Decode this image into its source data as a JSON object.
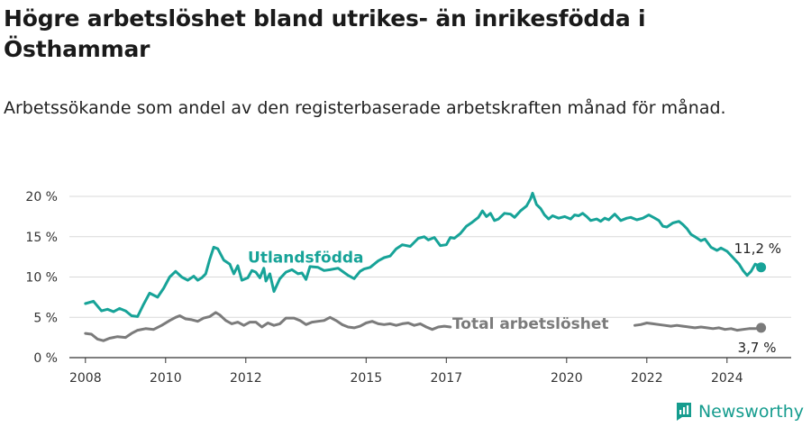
{
  "header": {
    "title": "Högre arbetslöshet bland utrikes- än inrikesfödda i Östhammar",
    "subtitle": "Arbetssökande som andel av den registerbaserade arbetskraften månad för månad."
  },
  "brand": {
    "name": "Newsworthy"
  },
  "colors": {
    "foreign_born": "#17a398",
    "total": "#7b7b7b",
    "grid": "#d9d9d9",
    "axis": "#333333",
    "brand": "#159c8e"
  },
  "chart_data": {
    "type": "line",
    "title": "Högre arbetslöshet bland utrikes- än inrikesfödda i Östhammar",
    "subtitle": "Arbetssökande som andel av den registerbaserade arbetskraften månad för månad.",
    "xlabel": "",
    "ylabel": "",
    "xlim": [
      2007.6,
      2025.6
    ],
    "ylim": [
      0,
      20
    ],
    "y_ticks": [
      0,
      5,
      10,
      15,
      20
    ],
    "y_tick_labels": [
      "0 %",
      "5 %",
      "10 %",
      "15 %",
      "20 %"
    ],
    "x_ticks": [
      2008,
      2010,
      2012,
      2015,
      2017,
      2020,
      2022,
      2024
    ],
    "x_tick_labels": [
      "2008",
      "2010",
      "2012",
      "2015",
      "2017",
      "2020",
      "2022",
      "2024"
    ],
    "grid": "horizontal",
    "legend": "none (inline series labels)",
    "series": [
      {
        "name": "Utlandsfödda",
        "end_label": "11,2 %",
        "points": [
          [
            2008.0,
            6.7
          ],
          [
            2008.2,
            7.0
          ],
          [
            2008.4,
            5.8
          ],
          [
            2008.55,
            6.0
          ],
          [
            2008.7,
            5.7
          ],
          [
            2008.85,
            6.1
          ],
          [
            2009.0,
            5.8
          ],
          [
            2009.15,
            5.2
          ],
          [
            2009.3,
            5.1
          ],
          [
            2009.45,
            6.6
          ],
          [
            2009.6,
            8.0
          ],
          [
            2009.8,
            7.5
          ],
          [
            2009.95,
            8.6
          ],
          [
            2010.1,
            10.0
          ],
          [
            2010.25,
            10.7
          ],
          [
            2010.4,
            10.0
          ],
          [
            2010.55,
            9.6
          ],
          [
            2010.7,
            10.1
          ],
          [
            2010.8,
            9.6
          ],
          [
            2010.9,
            9.9
          ],
          [
            2011.0,
            10.4
          ],
          [
            2011.1,
            12.2
          ],
          [
            2011.2,
            13.7
          ],
          [
            2011.3,
            13.5
          ],
          [
            2011.45,
            12.1
          ],
          [
            2011.6,
            11.6
          ],
          [
            2011.7,
            10.4
          ],
          [
            2011.8,
            11.4
          ],
          [
            2011.9,
            9.6
          ],
          [
            2012.05,
            9.9
          ],
          [
            2012.15,
            10.8
          ],
          [
            2012.25,
            10.6
          ],
          [
            2012.35,
            9.9
          ],
          [
            2012.45,
            11.1
          ],
          [
            2012.5,
            9.5
          ],
          [
            2012.6,
            10.4
          ],
          [
            2012.7,
            8.2
          ],
          [
            2012.85,
            9.8
          ],
          [
            2013.0,
            10.6
          ],
          [
            2013.15,
            10.9
          ],
          [
            2013.3,
            10.4
          ],
          [
            2013.4,
            10.5
          ],
          [
            2013.5,
            9.7
          ],
          [
            2013.6,
            11.3
          ],
          [
            2013.8,
            11.2
          ],
          [
            2013.95,
            10.8
          ],
          [
            2014.1,
            10.9
          ],
          [
            2014.3,
            11.1
          ],
          [
            2014.55,
            10.2
          ],
          [
            2014.7,
            9.8
          ],
          [
            2014.85,
            10.7
          ],
          [
            2014.95,
            11.0
          ],
          [
            2015.1,
            11.2
          ],
          [
            2015.3,
            12.0
          ],
          [
            2015.45,
            12.4
          ],
          [
            2015.6,
            12.6
          ],
          [
            2015.75,
            13.5
          ],
          [
            2015.9,
            14.0
          ],
          [
            2016.1,
            13.8
          ],
          [
            2016.3,
            14.8
          ],
          [
            2016.45,
            15.0
          ],
          [
            2016.55,
            14.6
          ],
          [
            2016.7,
            14.9
          ],
          [
            2016.85,
            13.9
          ],
          [
            2017.0,
            14.0
          ],
          [
            2017.1,
            14.9
          ],
          [
            2017.2,
            14.8
          ],
          [
            2017.35,
            15.4
          ],
          [
            2017.5,
            16.3
          ],
          [
            2017.65,
            16.8
          ],
          [
            2017.8,
            17.4
          ],
          [
            2017.9,
            18.2
          ],
          [
            2018.0,
            17.5
          ],
          [
            2018.1,
            17.9
          ],
          [
            2018.2,
            17.0
          ],
          [
            2018.3,
            17.2
          ],
          [
            2018.45,
            17.9
          ],
          [
            2018.6,
            17.8
          ],
          [
            2018.7,
            17.4
          ],
          [
            2018.85,
            18.2
          ],
          [
            2019.0,
            18.8
          ],
          [
            2019.1,
            19.7
          ],
          [
            2019.15,
            20.4
          ],
          [
            2019.25,
            19.0
          ],
          [
            2019.35,
            18.5
          ],
          [
            2019.45,
            17.7
          ],
          [
            2019.55,
            17.2
          ],
          [
            2019.65,
            17.6
          ],
          [
            2019.8,
            17.3
          ],
          [
            2019.95,
            17.5
          ],
          [
            2020.1,
            17.2
          ],
          [
            2020.2,
            17.7
          ],
          [
            2020.3,
            17.6
          ],
          [
            2020.4,
            17.9
          ],
          [
            2020.5,
            17.5
          ],
          [
            2020.6,
            17.0
          ],
          [
            2020.75,
            17.2
          ],
          [
            2020.85,
            16.9
          ],
          [
            2020.95,
            17.3
          ],
          [
            2021.05,
            17.1
          ],
          [
            2021.2,
            17.8
          ],
          [
            2021.35,
            17.0
          ],
          [
            2021.5,
            17.3
          ],
          [
            2021.6,
            17.4
          ],
          [
            2021.75,
            17.1
          ],
          [
            2021.9,
            17.3
          ],
          [
            2022.05,
            17.7
          ],
          [
            2022.2,
            17.3
          ],
          [
            2022.3,
            17.0
          ],
          [
            2022.4,
            16.3
          ],
          [
            2022.5,
            16.2
          ],
          [
            2022.65,
            16.7
          ],
          [
            2022.8,
            16.9
          ],
          [
            2022.9,
            16.5
          ],
          [
            2023.0,
            16.0
          ],
          [
            2023.1,
            15.3
          ],
          [
            2023.2,
            15.0
          ],
          [
            2023.35,
            14.5
          ],
          [
            2023.45,
            14.7
          ],
          [
            2023.6,
            13.7
          ],
          [
            2023.75,
            13.3
          ],
          [
            2023.85,
            13.6
          ],
          [
            2024.0,
            13.2
          ],
          [
            2024.15,
            12.4
          ],
          [
            2024.3,
            11.6
          ],
          [
            2024.4,
            10.8
          ],
          [
            2024.5,
            10.2
          ],
          [
            2024.6,
            10.7
          ],
          [
            2024.7,
            11.6
          ],
          [
            2024.8,
            11.4
          ],
          [
            2024.85,
            11.2
          ]
        ]
      },
      {
        "name": "Total arbetslöshet",
        "end_label": "3,7 %",
        "points": [
          [
            2008.0,
            3.0
          ],
          [
            2008.15,
            2.9
          ],
          [
            2008.3,
            2.3
          ],
          [
            2008.45,
            2.1
          ],
          [
            2008.6,
            2.4
          ],
          [
            2008.8,
            2.6
          ],
          [
            2009.0,
            2.5
          ],
          [
            2009.15,
            3.0
          ],
          [
            2009.3,
            3.4
          ],
          [
            2009.5,
            3.6
          ],
          [
            2009.7,
            3.5
          ],
          [
            2009.9,
            4.0
          ],
          [
            2010.1,
            4.6
          ],
          [
            2010.25,
            5.0
          ],
          [
            2010.35,
            5.2
          ],
          [
            2010.5,
            4.8
          ],
          [
            2010.65,
            4.7
          ],
          [
            2010.8,
            4.5
          ],
          [
            2010.95,
            4.9
          ],
          [
            2011.1,
            5.1
          ],
          [
            2011.25,
            5.6
          ],
          [
            2011.35,
            5.3
          ],
          [
            2011.5,
            4.6
          ],
          [
            2011.65,
            4.2
          ],
          [
            2011.8,
            4.4
          ],
          [
            2011.95,
            4.0
          ],
          [
            2012.1,
            4.4
          ],
          [
            2012.25,
            4.4
          ],
          [
            2012.4,
            3.8
          ],
          [
            2012.55,
            4.3
          ],
          [
            2012.7,
            4.0
          ],
          [
            2012.85,
            4.2
          ],
          [
            2013.0,
            4.9
          ],
          [
            2013.2,
            4.9
          ],
          [
            2013.35,
            4.6
          ],
          [
            2013.5,
            4.1
          ],
          [
            2013.65,
            4.4
          ],
          [
            2013.8,
            4.5
          ],
          [
            2013.95,
            4.6
          ],
          [
            2014.1,
            5.0
          ],
          [
            2014.25,
            4.6
          ],
          [
            2014.4,
            4.1
          ],
          [
            2014.55,
            3.8
          ],
          [
            2014.7,
            3.7
          ],
          [
            2014.85,
            3.9
          ],
          [
            2015.0,
            4.3
          ],
          [
            2015.15,
            4.5
          ],
          [
            2015.3,
            4.2
          ],
          [
            2015.45,
            4.1
          ],
          [
            2015.6,
            4.2
          ],
          [
            2015.75,
            4.0
          ],
          [
            2015.9,
            4.2
          ],
          [
            2016.05,
            4.3
          ],
          [
            2016.2,
            4.0
          ],
          [
            2016.35,
            4.2
          ],
          [
            2016.5,
            3.8
          ],
          [
            2016.65,
            3.5
          ],
          [
            2016.8,
            3.8
          ],
          [
            2016.95,
            3.9
          ],
          [
            2017.1,
            3.8
          ],
          [
            2021.7,
            4.0
          ],
          [
            2021.85,
            4.1
          ],
          [
            2022.0,
            4.3
          ],
          [
            2022.15,
            4.2
          ],
          [
            2022.3,
            4.1
          ],
          [
            2022.45,
            4.0
          ],
          [
            2022.6,
            3.9
          ],
          [
            2022.75,
            4.0
          ],
          [
            2022.9,
            3.9
          ],
          [
            2023.05,
            3.8
          ],
          [
            2023.2,
            3.7
          ],
          [
            2023.35,
            3.8
          ],
          [
            2023.5,
            3.7
          ],
          [
            2023.65,
            3.6
          ],
          [
            2023.8,
            3.7
          ],
          [
            2023.95,
            3.5
          ],
          [
            2024.1,
            3.6
          ],
          [
            2024.25,
            3.4
          ],
          [
            2024.4,
            3.5
          ],
          [
            2024.55,
            3.6
          ],
          [
            2024.7,
            3.6
          ],
          [
            2024.85,
            3.7
          ]
        ]
      }
    ]
  }
}
